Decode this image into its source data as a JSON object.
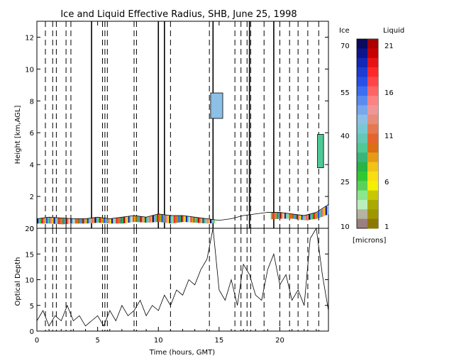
{
  "title": "Ice and Liquid Effective Radius, SHB, June 25, 1998",
  "chart_data": [
    {
      "type": "heatmap",
      "title": "Ice and Liquid Effective Radius, SHB, June 25, 1998",
      "ylabel": "Height [km,AGL]",
      "xlim": [
        0,
        24
      ],
      "ylim": [
        0,
        13
      ],
      "y_ticks": [
        0,
        2,
        4,
        6,
        8,
        10,
        12
      ],
      "x_ticks": [
        0,
        5,
        10,
        15,
        20
      ],
      "solid_vertical_lines_hours": [
        4.5,
        10.0,
        10.5,
        14.5,
        17.5,
        19.5
      ],
      "dashed_vertical_lines_hours": [
        0.7,
        1.3,
        1.6,
        2.4,
        2.8,
        5.4,
        5.6,
        5.8,
        8.0,
        8.2,
        11.0,
        14.2,
        16.3,
        16.8,
        17.3,
        17.6,
        18.7,
        20.0,
        20.8,
        21.5,
        22.3,
        23.2
      ],
      "cloud_base_km": [
        0.3,
        0.3,
        0.25,
        0.3,
        0.3,
        0.35,
        0.3,
        0.3,
        0.4,
        0.35,
        0.4,
        0.3,
        0.4,
        0.35,
        0.3,
        0.35,
        0.4,
        0.45,
        0.5,
        0.55,
        0.6,
        0.6,
        0.5,
        0.6,
        0.9
      ],
      "low_cloud_top_km": [
        0.6,
        0.7,
        0.65,
        0.6,
        0.6,
        0.7,
        0.6,
        0.7,
        0.8,
        0.7,
        0.9,
        0.8,
        0.8,
        0.7,
        0.6,
        0.5,
        0.6,
        0.8,
        0.9,
        1.0,
        1.0,
        0.9,
        0.8,
        1.0,
        1.5
      ],
      "cloud_patches": [
        {
          "hours": [
            14.3,
            15.3
          ],
          "height_km": [
            6.9,
            8.5
          ],
          "ice_radius_microns": 45
        },
        {
          "hours": [
            23.1,
            23.6
          ],
          "height_km": [
            3.8,
            5.9
          ],
          "ice_radius_microns": 35
        }
      ]
    },
    {
      "type": "line",
      "xlabel": "Time (hours, GMT)",
      "ylabel": "Optical Depth",
      "xlim": [
        0,
        24
      ],
      "ylim": [
        0,
        20
      ],
      "y_ticks": [
        0,
        5,
        10,
        15,
        20
      ],
      "x_ticks": [
        0,
        5,
        10,
        15,
        20
      ],
      "x": [
        0,
        0.5,
        1,
        1.5,
        2,
        2.5,
        3,
        3.5,
        4,
        4.5,
        5,
        5.5,
        6,
        6.5,
        7,
        7.5,
        8,
        8.5,
        9,
        9.5,
        10,
        10.5,
        11,
        11.5,
        12,
        12.5,
        13,
        13.5,
        14,
        14.5,
        15,
        15.5,
        16,
        16.5,
        17,
        17.5,
        18,
        18.5,
        19,
        19.5,
        20,
        20.5,
        21,
        21.5,
        22,
        22.5,
        23,
        23.5,
        24
      ],
      "y": [
        2,
        4,
        1,
        3,
        2,
        5,
        2,
        3,
        1,
        2,
        3,
        1,
        4,
        2,
        5,
        3,
        4,
        6,
        3,
        5,
        4,
        7,
        5,
        8,
        7,
        10,
        9,
        12,
        14,
        20,
        8,
        6,
        10,
        5,
        13,
        11,
        7,
        6,
        12,
        15,
        9,
        11,
        6,
        8,
        5,
        18,
        20,
        11,
        4
      ]
    }
  ],
  "colorbar": {
    "ice_header": "Ice",
    "liquid_header": "Liquid",
    "ice_labels": [
      "70",
      "55",
      "40",
      "25",
      "10"
    ],
    "liquid_labels": [
      "21",
      "16",
      "11",
      "6",
      "1"
    ],
    "units": "[microns]",
    "ice_colors": [
      "#0a0a5e",
      "#0f148c",
      "#1428b4",
      "#1e3cd2",
      "#2850e6",
      "#3c6ef0",
      "#5a8cf0",
      "#78a8ec",
      "#8cc0e6",
      "#78c8d2",
      "#64c8b4",
      "#50c896",
      "#3cb478",
      "#28b446",
      "#32c832",
      "#5ad25a",
      "#8ce68c",
      "#bbeebb",
      "#b4b4a0",
      "#9b7f7f"
    ],
    "liquid_colors": [
      "#aa0000",
      "#c80000",
      "#e61414",
      "#ff2828",
      "#ff4646",
      "#ff6464",
      "#ff8282",
      "#f09696",
      "#e68c78",
      "#e67850",
      "#e6642d",
      "#dc6e14",
      "#e69b14",
      "#f0c314",
      "#fade14",
      "#f5f000",
      "#c8c800",
      "#aaaa00",
      "#a09600",
      "#8c7800"
    ]
  }
}
